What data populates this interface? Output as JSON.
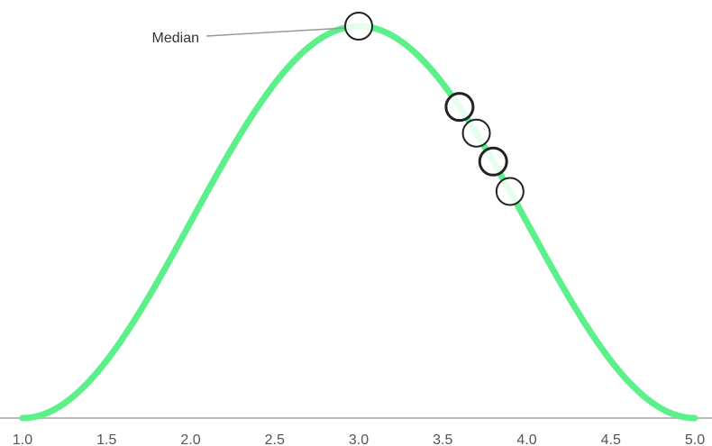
{
  "chart_data": {
    "type": "line",
    "title": "",
    "xlabel": "",
    "ylabel": "",
    "xlim": [
      1.0,
      5.0
    ],
    "x_ticks": [
      "1.0",
      "1.5",
      "2.0",
      "2.5",
      "3.0",
      "3.5",
      "4.0",
      "4.5",
      "5.0"
    ],
    "grid": false,
    "curve": {
      "shape": "bell",
      "x": [
        1.0,
        1.25,
        1.5,
        1.75,
        2.0,
        2.25,
        2.5,
        2.75,
        3.0,
        3.25,
        3.5,
        3.75,
        4.0,
        4.25,
        4.5,
        4.75,
        5.0
      ],
      "y": [
        0.0,
        0.04,
        0.15,
        0.31,
        0.5,
        0.69,
        0.85,
        0.96,
        1.0,
        0.96,
        0.85,
        0.69,
        0.5,
        0.31,
        0.15,
        0.04,
        0.0
      ],
      "color": "#5cf08a"
    },
    "points": [
      {
        "x": 3.0,
        "y": 1.0,
        "emphasis": "normal"
      },
      {
        "x": 3.6,
        "y": 0.8,
        "emphasis": "bold"
      },
      {
        "x": 3.7,
        "y": 0.74,
        "emphasis": "normal"
      },
      {
        "x": 3.8,
        "y": 0.68,
        "emphasis": "bold"
      },
      {
        "x": 3.9,
        "y": 0.61,
        "emphasis": "normal"
      }
    ],
    "annotations": [
      {
        "text": "Median",
        "x": 3.0,
        "y": 1.0
      }
    ],
    "colors": {
      "axis": "#bbbbbb",
      "tick_text": "#555555",
      "leader": "#999999",
      "marker_stroke": "#222222",
      "marker_fill": "#ffffff"
    }
  }
}
